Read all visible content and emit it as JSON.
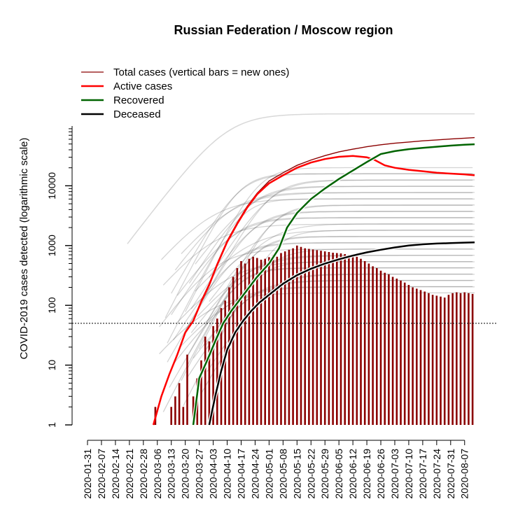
{
  "chart_data": {
    "type": "line",
    "title": "Russian Federation / Moscow region",
    "ylabel": "COVID-2019 cases detected (logarithmic scale)",
    "xlabel": "",
    "y_scale": "log",
    "ylim": [
      1,
      100000
    ],
    "y_ticks": [
      1,
      10,
      100,
      1000,
      10000
    ],
    "y_tick_labels": [
      "1",
      "10",
      "100",
      "1000",
      "10000"
    ],
    "xlim": [
      "2020-01-31",
      "2020-08-12"
    ],
    "x_tick_labels": [
      "2020-01-31",
      "2020-02-07",
      "2020-02-14",
      "2020-02-21",
      "2020-02-28",
      "2020-03-06",
      "2020-03-13",
      "2020-03-20",
      "2020-03-27",
      "2020-04-03",
      "2020-04-10",
      "2020-04-17",
      "2020-04-24",
      "2020-05-01",
      "2020-05-08",
      "2020-05-15",
      "2020-05-22",
      "2020-05-29",
      "2020-06-05",
      "2020-06-12",
      "2020-06-19",
      "2020-06-26",
      "2020-07-03",
      "2020-07-10",
      "2020-07-17",
      "2020-07-24",
      "2020-07-31",
      "2020-08-07"
    ],
    "reference_line": 50,
    "legend": {
      "placement": "top-left",
      "entries": [
        {
          "label": "Total cases (vertical bars = new ones)",
          "color": "#8b0000"
        },
        {
          "label": "Active cases",
          "color": "#ff0000"
        },
        {
          "label": "Recovered",
          "color": "#006400"
        },
        {
          "label": "Deceased",
          "color": "#000000"
        }
      ]
    },
    "series": [
      {
        "name": "Total cases",
        "color": "#8b0000",
        "x": [
          "2020-03-04",
          "2020-03-08",
          "2020-03-12",
          "2020-03-16",
          "2020-03-20",
          "2020-03-24",
          "2020-03-28",
          "2020-04-01",
          "2020-04-05",
          "2020-04-10",
          "2020-04-15",
          "2020-04-20",
          "2020-04-25",
          "2020-05-01",
          "2020-05-08",
          "2020-05-15",
          "2020-05-22",
          "2020-05-29",
          "2020-06-05",
          "2020-06-12",
          "2020-06-19",
          "2020-06-26",
          "2020-07-03",
          "2020-07-10",
          "2020-07-17",
          "2020-07-24",
          "2020-07-31",
          "2020-08-07",
          "2020-08-12"
        ],
        "y": [
          1,
          3,
          7,
          15,
          35,
          55,
          120,
          230,
          500,
          1200,
          2400,
          4500,
          7500,
          12000,
          16500,
          22000,
          27000,
          32000,
          37000,
          41000,
          45000,
          48500,
          51500,
          54000,
          56500,
          58500,
          60500,
          62500,
          64000
        ]
      },
      {
        "name": "Active cases",
        "color": "#ff0000",
        "x": [
          "2020-03-04",
          "2020-03-08",
          "2020-03-12",
          "2020-03-16",
          "2020-03-20",
          "2020-03-24",
          "2020-03-28",
          "2020-04-01",
          "2020-04-05",
          "2020-04-10",
          "2020-04-15",
          "2020-04-20",
          "2020-04-25",
          "2020-05-01",
          "2020-05-08",
          "2020-05-15",
          "2020-05-22",
          "2020-05-29",
          "2020-06-05",
          "2020-06-12",
          "2020-06-19",
          "2020-06-23",
          "2020-06-28",
          "2020-07-03",
          "2020-07-10",
          "2020-07-17",
          "2020-07-24",
          "2020-07-31",
          "2020-08-07",
          "2020-08-12"
        ],
        "y": [
          1,
          3,
          7,
          15,
          35,
          55,
          115,
          220,
          480,
          1150,
          2300,
          4300,
          7200,
          11000,
          15000,
          20000,
          24500,
          28000,
          30500,
          31500,
          30000,
          27000,
          22000,
          20000,
          18500,
          17500,
          16500,
          16000,
          15500,
          15000
        ]
      },
      {
        "name": "Recovered",
        "color": "#006400",
        "x": [
          "2020-03-24",
          "2020-03-27",
          "2020-03-31",
          "2020-04-04",
          "2020-04-08",
          "2020-04-12",
          "2020-04-16",
          "2020-04-20",
          "2020-04-25",
          "2020-05-01",
          "2020-05-06",
          "2020-05-10",
          "2020-05-15",
          "2020-05-22",
          "2020-05-29",
          "2020-06-05",
          "2020-06-12",
          "2020-06-19",
          "2020-06-26",
          "2020-07-03",
          "2020-07-10",
          "2020-07-17",
          "2020-07-24",
          "2020-07-31",
          "2020-08-07",
          "2020-08-12"
        ],
        "y": [
          1,
          6,
          12,
          25,
          50,
          80,
          120,
          180,
          300,
          500,
          900,
          2000,
          3500,
          6000,
          9000,
          13000,
          18000,
          25000,
          34000,
          38000,
          41000,
          43000,
          45000,
          47000,
          48500,
          49500
        ]
      },
      {
        "name": "Deceased",
        "color": "#000000",
        "x": [
          "2020-04-01",
          "2020-04-04",
          "2020-04-07",
          "2020-04-10",
          "2020-04-14",
          "2020-04-18",
          "2020-04-22",
          "2020-04-26",
          "2020-05-01",
          "2020-05-08",
          "2020-05-15",
          "2020-05-22",
          "2020-05-29",
          "2020-06-05",
          "2020-06-12",
          "2020-06-19",
          "2020-06-26",
          "2020-07-03",
          "2020-07-10",
          "2020-07-17",
          "2020-07-24",
          "2020-07-31",
          "2020-08-07",
          "2020-08-12"
        ],
        "y": [
          1,
          3,
          8,
          18,
          35,
          55,
          80,
          110,
          150,
          230,
          320,
          410,
          500,
          590,
          680,
          770,
          850,
          930,
          1000,
          1050,
          1080,
          1100,
          1120,
          1130
        ]
      }
    ],
    "new_cases_bars": {
      "color": "#8b0000",
      "x": [
        "2020-03-05",
        "2020-03-13",
        "2020-03-15",
        "2020-03-17",
        "2020-03-19",
        "2020-03-21",
        "2020-03-24",
        "2020-03-26",
        "2020-03-28",
        "2020-03-30",
        "2020-04-01",
        "2020-04-03",
        "2020-04-05",
        "2020-04-07",
        "2020-04-09",
        "2020-04-11",
        "2020-04-13",
        "2020-04-15",
        "2020-04-17",
        "2020-04-19",
        "2020-04-21",
        "2020-04-23",
        "2020-04-25",
        "2020-04-27",
        "2020-04-29",
        "2020-05-01",
        "2020-05-03",
        "2020-05-05",
        "2020-05-07",
        "2020-05-09",
        "2020-05-11",
        "2020-05-13",
        "2020-05-15",
        "2020-05-17",
        "2020-05-19",
        "2020-05-21",
        "2020-05-23",
        "2020-05-25",
        "2020-05-27",
        "2020-05-29",
        "2020-05-31",
        "2020-06-02",
        "2020-06-04",
        "2020-06-06",
        "2020-06-08",
        "2020-06-10",
        "2020-06-12",
        "2020-06-14",
        "2020-06-16",
        "2020-06-18",
        "2020-06-20",
        "2020-06-22",
        "2020-06-24",
        "2020-06-26",
        "2020-06-28",
        "2020-06-30",
        "2020-07-02",
        "2020-07-04",
        "2020-07-06",
        "2020-07-08",
        "2020-07-10",
        "2020-07-12",
        "2020-07-14",
        "2020-07-16",
        "2020-07-18",
        "2020-07-20",
        "2020-07-22",
        "2020-07-24",
        "2020-07-26",
        "2020-07-28",
        "2020-07-30",
        "2020-08-01",
        "2020-08-03",
        "2020-08-05",
        "2020-08-07",
        "2020-08-09",
        "2020-08-11"
      ],
      "y": [
        2,
        2,
        3,
        5,
        2,
        15,
        3,
        6,
        12,
        30,
        25,
        45,
        60,
        90,
        120,
        200,
        300,
        420,
        550,
        500,
        600,
        650,
        620,
        580,
        600,
        640,
        700,
        650,
        750,
        800,
        850,
        900,
        1000,
        950,
        900,
        880,
        860,
        840,
        820,
        800,
        780,
        760,
        750,
        740,
        720,
        700,
        680,
        650,
        600,
        550,
        500,
        450,
        420,
        380,
        350,
        330,
        300,
        280,
        260,
        240,
        220,
        200,
        190,
        180,
        170,
        160,
        150,
        145,
        140,
        135,
        150,
        160,
        165,
        160,
        165,
        160,
        155
      ]
    },
    "background_series_note": ""
  }
}
